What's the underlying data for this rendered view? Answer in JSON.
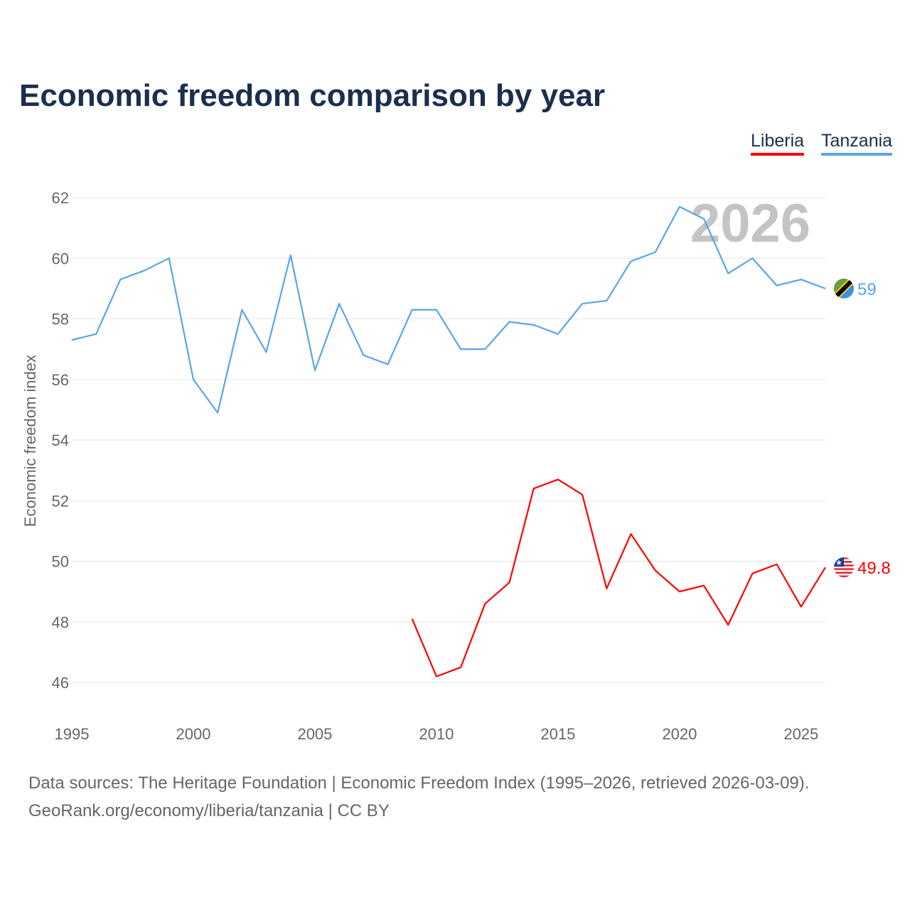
{
  "chart_data": {
    "type": "line",
    "title": "Economic freedom comparison by year",
    "xlabel": "",
    "ylabel": "Economic freedom index",
    "xlim": [
      1995,
      2026
    ],
    "ylim": [
      45,
      62.5
    ],
    "x_ticks": [
      1995,
      2000,
      2005,
      2010,
      2015,
      2020,
      2025
    ],
    "y_ticks": [
      46,
      48,
      50,
      52,
      54,
      56,
      58,
      60,
      62
    ],
    "grid": true,
    "legend_position": "top-right",
    "watermark_year": "2026",
    "series": [
      {
        "name": "Liberia",
        "color": "#ff0000",
        "end_label": "49.8",
        "flag": "liberia-flag",
        "x": [
          2009,
          2010,
          2011,
          2012,
          2013,
          2014,
          2015,
          2016,
          2017,
          2018,
          2019,
          2020,
          2021,
          2022,
          2023,
          2024,
          2025,
          2026
        ],
        "values": [
          48.1,
          46.2,
          46.5,
          48.6,
          49.3,
          52.4,
          52.7,
          52.2,
          49.1,
          50.9,
          49.7,
          49.0,
          49.2,
          47.9,
          49.6,
          49.9,
          48.5,
          49.8
        ]
      },
      {
        "name": "Tanzania",
        "color": "#5ba4e8",
        "end_label": "59",
        "flag": "tanzania-flag",
        "x": [
          1995,
          1996,
          1997,
          1998,
          1999,
          2000,
          2001,
          2002,
          2003,
          2004,
          2005,
          2006,
          2007,
          2008,
          2009,
          2010,
          2011,
          2012,
          2013,
          2014,
          2015,
          2016,
          2017,
          2018,
          2019,
          2020,
          2021,
          2022,
          2023,
          2024,
          2025,
          2026
        ],
        "values": [
          57.3,
          57.5,
          59.3,
          59.6,
          60.0,
          56.0,
          54.9,
          58.3,
          56.9,
          60.1,
          56.3,
          58.5,
          56.8,
          56.5,
          58.3,
          58.3,
          57.0,
          57.0,
          57.9,
          57.8,
          57.5,
          58.5,
          58.6,
          59.9,
          60.2,
          61.7,
          61.3,
          59.5,
          60.0,
          59.1,
          59.3,
          59.0
        ]
      }
    ]
  },
  "footer": {
    "sources": "Data sources: The Heritage Foundation | Economic Freedom Index (1995–2026, retrieved 2026-03-09).",
    "credit": "GeoRank.org/economy/liberia/tanzania | CC BY"
  }
}
